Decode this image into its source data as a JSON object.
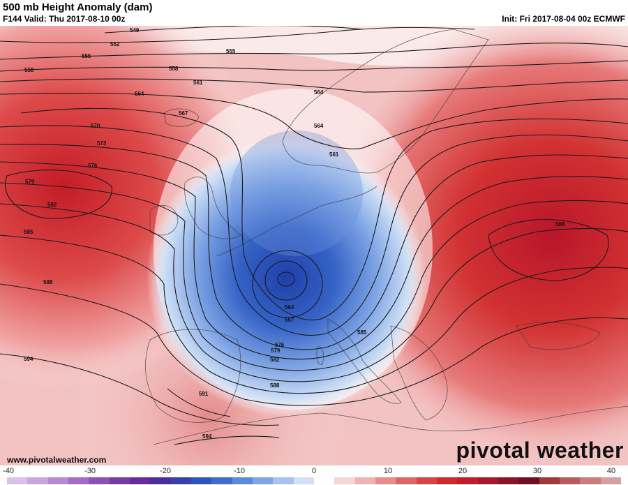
{
  "header": {
    "title": "500 mb Height Anomaly (dam)",
    "valid": "F144 Valid: Thu 2017-08-10 00z",
    "init": "Init: Fri 2017-08-04 00z ECMWF"
  },
  "footer": {
    "website": "www.pivotalweather.com",
    "logo": "pivotal weather"
  },
  "contour_labels": {
    "l549": "549",
    "l552": "552",
    "l555a": "555",
    "l555b": "555",
    "l558a": "558",
    "l558b": "558",
    "l561a": "561",
    "l561b": "561",
    "l564a": "564",
    "l564b": "564",
    "l564c": "564",
    "l564d": "564",
    "l567a": "567",
    "l567b": "567",
    "l570": "570",
    "l573": "573",
    "l576a": "576",
    "l576b": "576",
    "l579a": "579",
    "l579b": "579",
    "l582a": "582",
    "l582b": "582",
    "l585a": "585",
    "l585b": "585",
    "l588a": "588",
    "l588b": "588",
    "l588c": "588",
    "l591": "591",
    "l594a": "594",
    "l594b": "594"
  },
  "colorbar": {
    "ticks": [
      "-40",
      "-30",
      "-20",
      "-10",
      "0",
      "10",
      "20",
      "30",
      "40"
    ],
    "colors": [
      "#d9c2ea",
      "#c9a6e0",
      "#b88ad4",
      "#a56bc6",
      "#8f4fb7",
      "#7a3aa6",
      "#6a2aa0",
      "#4b2e9e",
      "#3a3fb0",
      "#2f55c2",
      "#3e6fd0",
      "#5b8bdc",
      "#7ea6e6",
      "#a7c3ef",
      "#d2e0f7",
      "#ffffff",
      "#f6d6d6",
      "#f0b2b2",
      "#e98c8c",
      "#e06666",
      "#d84545",
      "#cf2b2b",
      "#c01f2a",
      "#a6182a",
      "#8c1428",
      "#711025",
      "#a23a3a",
      "#b85c5c",
      "#c97e7e",
      "#d6a0a0"
    ]
  },
  "colors": {
    "positive_core": "#c81e28",
    "positive_light": "#f3c8c8",
    "negative_core": "#2e4fb8",
    "negative_light": "#bcd0f2"
  }
}
